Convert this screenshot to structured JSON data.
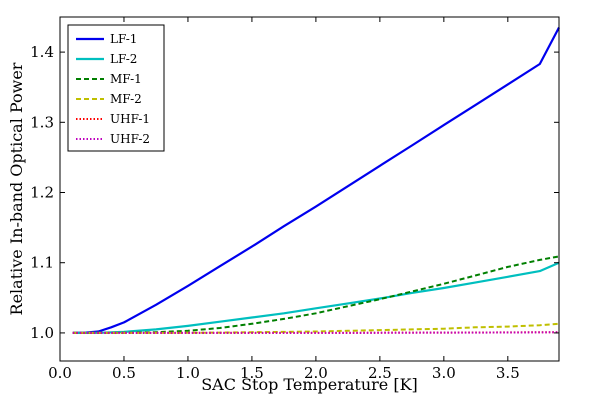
{
  "chart_data": {
    "type": "line",
    "xlabel": "SAC Stop Temperature [K]",
    "ylabel": "Relative In-band Optical Power",
    "xlim": [
      0.0,
      3.9
    ],
    "ylim": [
      0.96,
      1.45
    ],
    "xticks": [
      0.0,
      0.5,
      1.0,
      1.5,
      2.0,
      2.5,
      3.0,
      3.5
    ],
    "xtick_labels": [
      "0.0",
      "0.5",
      "1.0",
      "1.5",
      "2.0",
      "2.5",
      "3.0",
      "3.5"
    ],
    "yticks": [
      1.0,
      1.1,
      1.2,
      1.3,
      1.4
    ],
    "ytick_labels": [
      "1.0",
      "1.1",
      "1.2",
      "1.3",
      "1.4"
    ],
    "grid": false,
    "legend_position": "top-left",
    "x": [
      0.1,
      0.2,
      0.3,
      0.4,
      0.5,
      0.75,
      1.0,
      1.25,
      1.5,
      1.75,
      2.0,
      2.25,
      2.5,
      2.75,
      3.0,
      3.25,
      3.5,
      3.75,
      3.9
    ],
    "series": [
      {
        "name": "LF-1",
        "color": "#0000ee",
        "style": "solid",
        "values": [
          1.0,
          1.0005,
          1.002,
          1.008,
          1.015,
          1.04,
          1.067,
          1.095,
          1.123,
          1.152,
          1.18,
          1.209,
          1.238,
          1.267,
          1.296,
          1.325,
          1.354,
          1.383,
          1.435
        ]
      },
      {
        "name": "LF-2",
        "color": "#00bfbf",
        "style": "solid",
        "values": [
          1.0,
          1.0,
          1.0002,
          1.0008,
          1.0015,
          1.005,
          1.01,
          1.016,
          1.022,
          1.028,
          1.035,
          1.042,
          1.049,
          1.057,
          1.064,
          1.072,
          1.08,
          1.088,
          1.1
        ]
      },
      {
        "name": "MF-1",
        "color": "#007f00",
        "style": "dashed",
        "values": [
          1.0,
          1.0,
          1.0,
          1.0,
          1.0002,
          1.001,
          1.003,
          1.007,
          1.013,
          1.02,
          1.028,
          1.038,
          1.048,
          1.059,
          1.07,
          1.082,
          1.094,
          1.104,
          1.109
        ]
      },
      {
        "name": "MF-2",
        "color": "#bfbf00",
        "style": "dashed",
        "values": [
          1.0,
          1.0,
          1.0,
          1.0,
          1.0,
          1.0,
          1.0002,
          1.0005,
          1.001,
          1.0015,
          1.002,
          1.003,
          1.004,
          1.005,
          1.006,
          1.008,
          1.009,
          1.011,
          1.013
        ]
      },
      {
        "name": "UHF-1",
        "color": "#ff0000",
        "style": "dotted",
        "values": [
          1.0,
          1.0,
          1.0,
          1.0,
          1.0,
          1.0,
          1.0,
          1.0,
          1.0,
          1.0,
          1.0,
          1.0,
          1.0003,
          1.0004,
          1.0005,
          1.0006,
          1.0008,
          1.001,
          1.001
        ]
      },
      {
        "name": "UHF-2",
        "color": "#bf00bf",
        "style": "dotted",
        "values": [
          1.0,
          1.0,
          1.0,
          1.0,
          1.0,
          1.0,
          1.0,
          1.0,
          1.0,
          1.0,
          1.0,
          1.0,
          1.0002,
          1.0003,
          1.0004,
          1.0005,
          1.0006,
          1.0008,
          1.001
        ]
      }
    ]
  }
}
